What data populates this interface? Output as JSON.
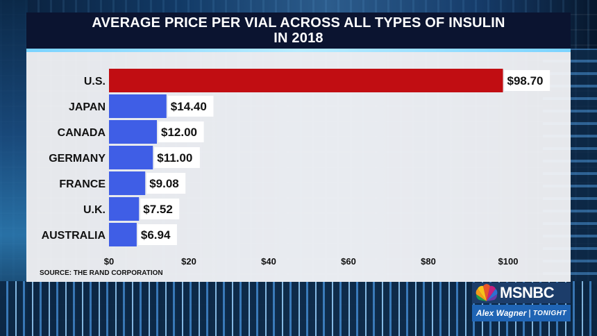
{
  "chart_data": {
    "type": "bar",
    "orientation": "horizontal",
    "title_lines": [
      "AVERAGE PRICE PER VIAL ACROSS ALL TYPES OF INSULIN",
      "IN 2018"
    ],
    "categories": [
      "U.S.",
      "JAPAN",
      "CANADA",
      "GERMANY",
      "FRANCE",
      "U.K.",
      "AUSTRALIA"
    ],
    "values": [
      98.7,
      14.4,
      12.0,
      11.0,
      9.08,
      7.52,
      6.94
    ],
    "value_labels": [
      "$98.70",
      "$14.40",
      "$12.00",
      "$11.00",
      "$9.08",
      "$7.52",
      "$6.94"
    ],
    "bar_colors": [
      "#c10d12",
      "#3f5ee6",
      "#3f5ee6",
      "#3f5ee6",
      "#3f5ee6",
      "#3f5ee6",
      "#3f5ee6"
    ],
    "xlim": [
      0,
      100
    ],
    "x_ticks": [
      0,
      20,
      40,
      60,
      80,
      100
    ],
    "x_tick_labels": [
      "$0",
      "$20",
      "$40",
      "$60",
      "$80",
      "$100"
    ],
    "grid": false,
    "source": "SOURCE: THE RAND CORPORATION"
  },
  "branding": {
    "network": "MSNBC",
    "show_name": "Alex Wagner",
    "show_divider": "|",
    "show_suffix": "TONIGHT"
  },
  "icons": {
    "network_logo": "peacock-icon"
  }
}
